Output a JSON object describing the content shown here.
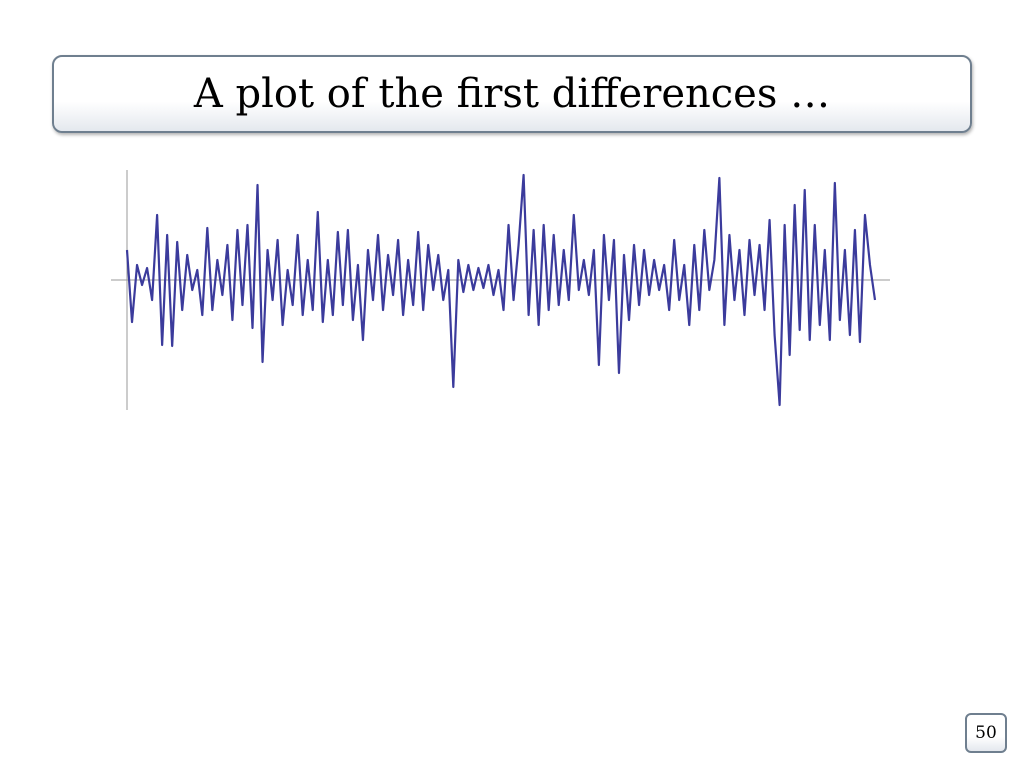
{
  "slide_title": "A plot of the first differences …",
  "page_number": "50",
  "chart_data": {
    "type": "line",
    "color": "#3b3b9c",
    "ylim": [
      -1.3,
      1.1
    ],
    "values": [
      0.3,
      -0.42,
      0.15,
      -0.05,
      0.12,
      -0.2,
      0.65,
      -0.65,
      0.45,
      -0.66,
      0.38,
      -0.3,
      0.25,
      -0.1,
      0.1,
      -0.35,
      0.52,
      -0.3,
      0.2,
      -0.15,
      0.35,
      -0.4,
      0.5,
      -0.25,
      0.55,
      -0.48,
      0.95,
      -0.82,
      0.3,
      -0.2,
      0.4,
      -0.45,
      0.1,
      -0.25,
      0.45,
      -0.35,
      0.2,
      -0.3,
      0.68,
      -0.42,
      0.2,
      -0.35,
      0.48,
      -0.25,
      0.5,
      -0.4,
      0.15,
      -0.6,
      0.3,
      -0.2,
      0.45,
      -0.3,
      0.25,
      -0.15,
      0.4,
      -0.35,
      0.2,
      -0.25,
      0.48,
      -0.3,
      0.35,
      -0.1,
      0.25,
      -0.2,
      0.1,
      -1.07,
      0.2,
      -0.12,
      0.15,
      -0.1,
      0.12,
      -0.08,
      0.15,
      -0.15,
      0.1,
      -0.3,
      0.55,
      -0.2,
      0.35,
      1.05,
      -0.35,
      0.5,
      -0.45,
      0.55,
      -0.3,
      0.45,
      -0.25,
      0.3,
      -0.2,
      0.65,
      -0.1,
      0.2,
      -0.15,
      0.3,
      -0.85,
      0.45,
      -0.2,
      0.4,
      -0.93,
      0.25,
      -0.4,
      0.35,
      -0.25,
      0.3,
      -0.15,
      0.2,
      -0.1,
      0.15,
      -0.3,
      0.4,
      -0.2,
      0.15,
      -0.45,
      0.35,
      -0.3,
      0.5,
      -0.1,
      0.2,
      1.02,
      -0.45,
      0.45,
      -0.2,
      0.3,
      -0.35,
      0.4,
      -0.15,
      0.35,
      -0.3,
      0.6,
      -0.55,
      -1.25,
      0.55,
      -0.75,
      0.75,
      -0.5,
      0.9,
      -0.6,
      0.55,
      -0.45,
      0.3,
      -0.6,
      0.97,
      -0.4,
      0.3,
      -0.55,
      0.5,
      -0.62,
      0.65,
      0.15,
      -0.2
    ]
  }
}
